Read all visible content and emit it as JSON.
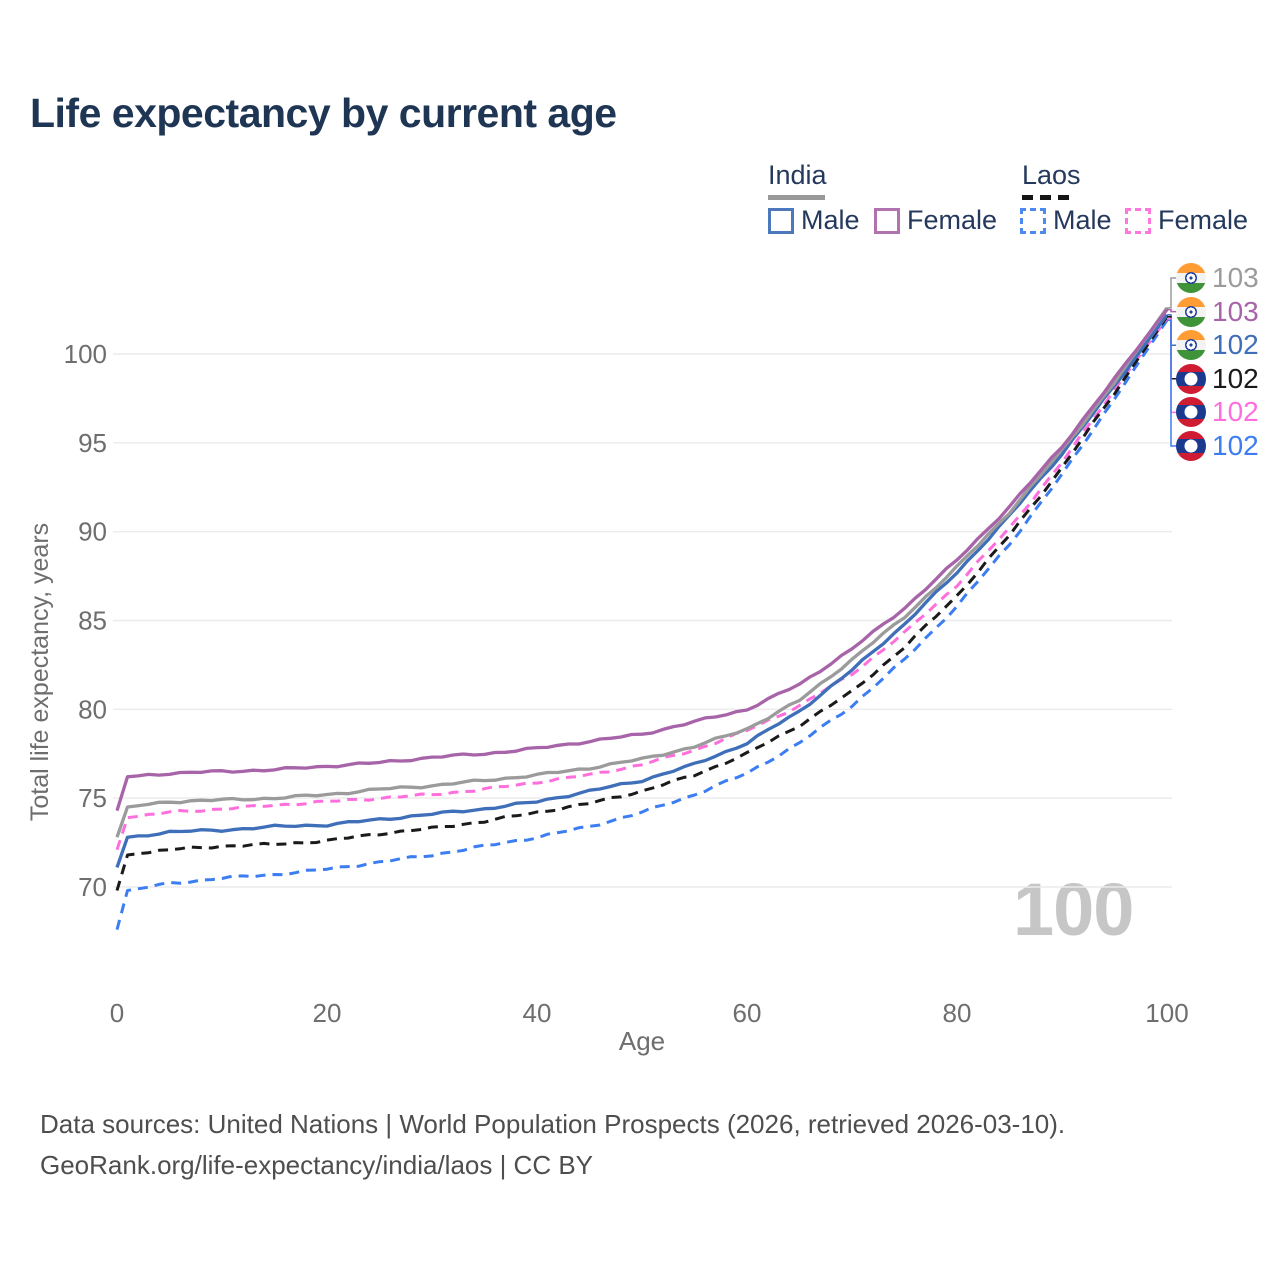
{
  "title": "Life expectancy by current age",
  "legend": {
    "groups": [
      {
        "title": "India",
        "line_style": "solid",
        "rule_color": "#999999",
        "items": [
          {
            "label": "Male",
            "color": "#4d79bc"
          },
          {
            "label": "Female",
            "color": "#b173af"
          }
        ]
      },
      {
        "title": "Laos",
        "line_style": "dashed",
        "rule_color": "#151515",
        "items": [
          {
            "label": "Male",
            "color": "#4d8af0"
          },
          {
            "label": "Female",
            "color": "#ff77dd"
          }
        ]
      }
    ]
  },
  "chart_data": {
    "type": "line",
    "title": "Life expectancy by current age",
    "xlabel": "Age",
    "ylabel": "Total life expectancy, years",
    "xlim": [
      0,
      100
    ],
    "ylim": [
      67,
      103.5
    ],
    "x_ticks": [
      0,
      20,
      40,
      60,
      80,
      100
    ],
    "y_ticks": [
      70,
      75,
      80,
      85,
      90,
      95,
      100
    ],
    "grid": "horizontal-only",
    "ages": [
      0,
      1,
      5,
      10,
      15,
      20,
      25,
      30,
      35,
      40,
      45,
      50,
      55,
      60,
      65,
      70,
      75,
      80,
      85,
      90,
      95,
      100
    ],
    "series": [
      {
        "key": "india-total",
        "name": "India",
        "country": "india",
        "sex": "all",
        "color": "#9b9b9b",
        "dashed": false,
        "end_label": "103",
        "values": [
          72.8,
          74.5,
          74.8,
          74.9,
          75.0,
          75.2,
          75.5,
          75.7,
          76.0,
          76.3,
          76.7,
          77.2,
          77.9,
          78.9,
          80.5,
          82.8,
          85.2,
          88.0,
          91.1,
          94.6,
          98.4,
          102.6
        ]
      },
      {
        "key": "india-female",
        "name": "India Female",
        "country": "india",
        "sex": "female",
        "color": "#a864a8",
        "dashed": false,
        "end_label": "103",
        "values": [
          74.3,
          76.2,
          76.4,
          76.5,
          76.6,
          76.8,
          77.0,
          77.3,
          77.5,
          77.8,
          78.2,
          78.6,
          79.3,
          80.0,
          81.4,
          83.4,
          85.7,
          88.4,
          91.4,
          94.8,
          98.6,
          102.5
        ]
      },
      {
        "key": "india-male",
        "name": "India Male",
        "country": "india",
        "sex": "male",
        "color": "#3f6fb8",
        "dashed": false,
        "end_label": "102",
        "values": [
          71.1,
          72.8,
          73.1,
          73.2,
          73.4,
          73.5,
          73.8,
          74.1,
          74.4,
          74.8,
          75.4,
          76.0,
          76.9,
          78.1,
          79.9,
          82.2,
          84.8,
          87.7,
          90.9,
          94.4,
          98.2,
          102.2
        ]
      },
      {
        "key": "laos-total",
        "name": "Laos",
        "country": "laos",
        "sex": "all",
        "color": "#1a1a1a",
        "dashed": true,
        "end_label": "102",
        "values": [
          69.8,
          71.8,
          72.1,
          72.3,
          72.4,
          72.6,
          73.0,
          73.3,
          73.7,
          74.2,
          74.7,
          75.4,
          76.3,
          77.5,
          79.1,
          81.0,
          83.5,
          86.4,
          89.8,
          93.6,
          97.8,
          102.1
        ]
      },
      {
        "key": "laos-female",
        "name": "Laos Female",
        "country": "laos",
        "sex": "female",
        "color": "#ff6edd",
        "dashed": true,
        "end_label": "102",
        "values": [
          72.1,
          73.9,
          74.2,
          74.4,
          74.6,
          74.8,
          75.0,
          75.2,
          75.5,
          75.9,
          76.3,
          76.9,
          77.7,
          78.8,
          80.2,
          82.0,
          84.3,
          87.0,
          90.2,
          93.9,
          98.0,
          102.0
        ]
      },
      {
        "key": "laos-male",
        "name": "Laos Male",
        "country": "laos",
        "sex": "male",
        "color": "#3c7ef2",
        "dashed": true,
        "end_label": "102",
        "values": [
          67.6,
          69.8,
          70.2,
          70.5,
          70.7,
          71.0,
          71.4,
          71.8,
          72.3,
          72.8,
          73.4,
          74.2,
          75.2,
          76.4,
          78.1,
          80.2,
          82.8,
          85.8,
          89.3,
          93.2,
          97.5,
          101.9
        ]
      }
    ],
    "legend_position": "top-right"
  },
  "watermark": "100",
  "footer": {
    "line1": "Data sources: United Nations | World Population Prospects (2026, retrieved 2026-03-10).",
    "line2": "GeoRank.org/life-expectancy/india/laos | CC BY"
  }
}
